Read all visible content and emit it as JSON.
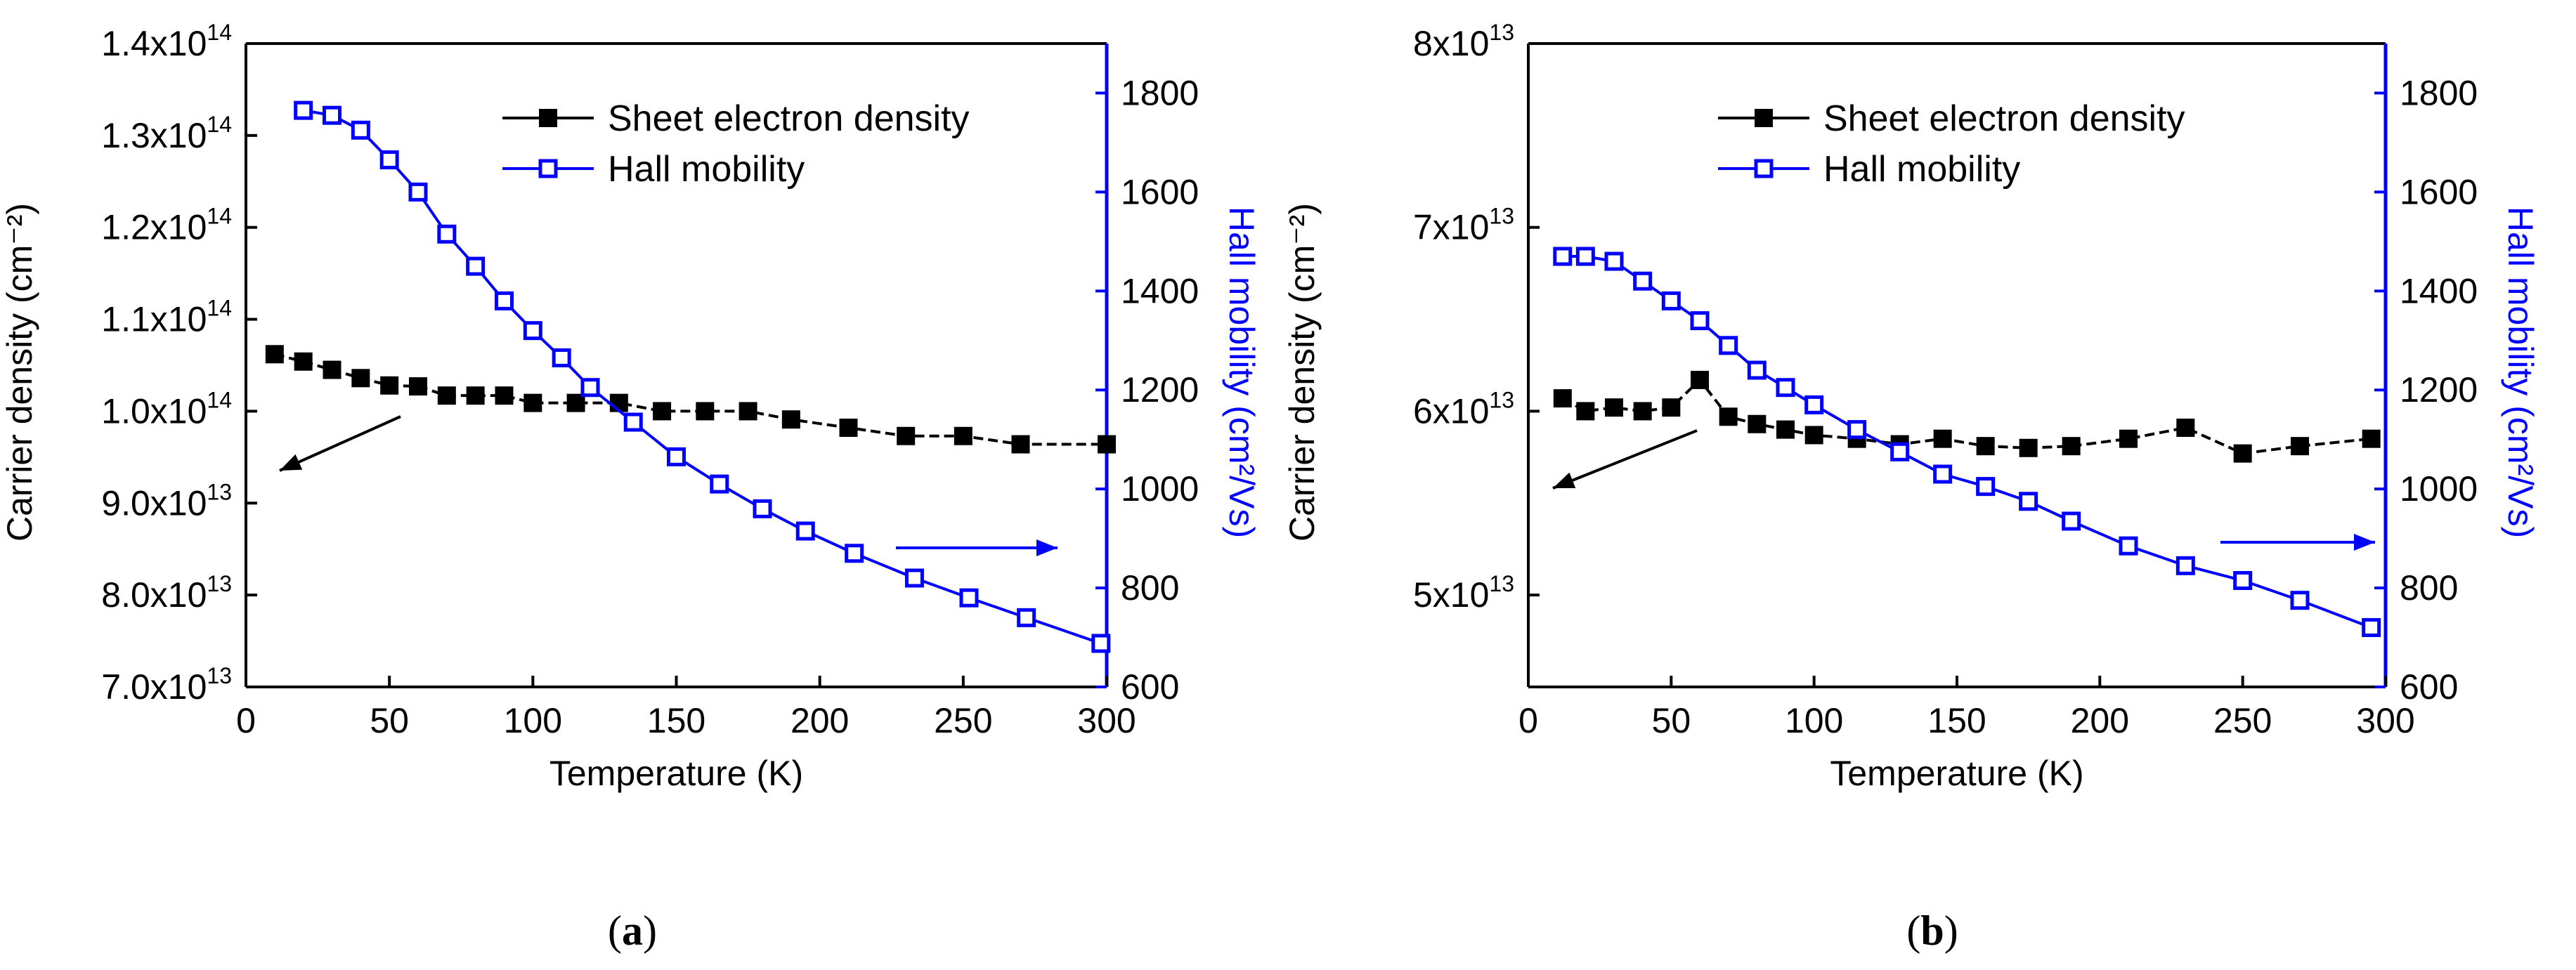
{
  "chart_data": [
    {
      "panel_label": "a",
      "type": "line",
      "xlabel": "Temperature (K)",
      "ylabel_left": "Carrier density (cm⁻²)",
      "ylabel_right": "Hall mobility (cm²/Vs)",
      "xlim": [
        0,
        300
      ],
      "ylim_left": [
        70000000000000.0,
        140000000000000.0
      ],
      "ylim_right": [
        600,
        1900
      ],
      "x_ticks": [
        "0",
        "50",
        "100",
        "150",
        "200",
        "250",
        "300"
      ],
      "y_left_ticks": [
        {
          "mant": "7.0x10",
          "exp": "13",
          "value": 70000000000000.0
        },
        {
          "mant": "8.0x10",
          "exp": "13",
          "value": 80000000000000.0
        },
        {
          "mant": "9.0x10",
          "exp": "13",
          "value": 90000000000000.0
        },
        {
          "mant": "1.0x10",
          "exp": "14",
          "value": 100000000000000.0
        },
        {
          "mant": "1.1x10",
          "exp": "14",
          "value": 110000000000000.0
        },
        {
          "mant": "1.2x10",
          "exp": "14",
          "value": 120000000000000.0
        },
        {
          "mant": "1.3x10",
          "exp": "14",
          "value": 130000000000000.0
        },
        {
          "mant": "1.4x10",
          "exp": "14",
          "value": 140000000000000.0
        }
      ],
      "y_right_ticks": [
        "600",
        "800",
        "1000",
        "1200",
        "1400",
        "1600",
        "1800"
      ],
      "legend_position": "top-right",
      "series": [
        {
          "name": "Sheet electron density",
          "axis": "left",
          "color": "#000000",
          "marker": "filled-square",
          "x": [
            10,
            20,
            30,
            40,
            50,
            60,
            70,
            80,
            90,
            100,
            115,
            130,
            145,
            160,
            175,
            190,
            210,
            230,
            250,
            270,
            300
          ],
          "y": [
            106200000000000.0,
            105400000000000.0,
            104500000000000.0,
            103600000000000.0,
            102800000000000.0,
            102700000000000.0,
            101700000000000.0,
            101700000000000.0,
            101700000000000.0,
            100900000000000.0,
            100900000000000.0,
            100900000000000.0,
            100000000000000.0,
            100000000000000.0,
            100000000000000.0,
            99100000000000.0,
            98200000000000.0,
            97300000000000.0,
            97300000000000.0,
            96400000000000.0,
            96400000000000.0
          ]
        },
        {
          "name": "Hall mobility",
          "axis": "right",
          "color": "#0000ff",
          "marker": "open-square",
          "x": [
            20,
            30,
            40,
            50,
            60,
            70,
            80,
            90,
            100,
            110,
            120,
            135,
            150,
            165,
            180,
            195,
            212,
            233,
            252,
            272,
            298
          ],
          "y": [
            1765,
            1755,
            1725,
            1665,
            1600,
            1515,
            1450,
            1380,
            1320,
            1265,
            1205,
            1135,
            1065,
            1010,
            960,
            915,
            870,
            820,
            780,
            740,
            688
          ]
        }
      ],
      "annotations": [
        "black arrow pointing toward left axis",
        "blue arrow pointing toward right axis"
      ]
    },
    {
      "panel_label": "b",
      "type": "line",
      "xlabel": "Temperature (K)",
      "ylabel_left": "Carrier density (cm⁻²)",
      "ylabel_right": "Hall mobility (cm²/Vs)",
      "xlim": [
        0,
        300
      ],
      "ylim_left": [
        45000000000000.0,
        80000000000000.0
      ],
      "ylim_right": [
        600,
        1900
      ],
      "x_ticks": [
        "0",
        "50",
        "100",
        "150",
        "200",
        "250",
        "300"
      ],
      "y_left_ticks": [
        {
          "mant": "5x10",
          "exp": "13",
          "value": 50000000000000.0
        },
        {
          "mant": "6x10",
          "exp": "13",
          "value": 60000000000000.0
        },
        {
          "mant": "7x10",
          "exp": "13",
          "value": 70000000000000.0
        },
        {
          "mant": "8x10",
          "exp": "13",
          "value": 80000000000000.0
        }
      ],
      "y_right_ticks": [
        "600",
        "800",
        "1000",
        "1200",
        "1400",
        "1600",
        "1800"
      ],
      "legend_position": "top-right",
      "series": [
        {
          "name": "Sheet electron density",
          "axis": "left",
          "color": "#000000",
          "marker": "filled-square",
          "x": [
            12,
            20,
            30,
            40,
            50,
            60,
            70,
            80,
            90,
            100,
            115,
            130,
            145,
            160,
            175,
            190,
            210,
            230,
            250,
            270,
            295
          ],
          "y": [
            60700000000000.0,
            60000000000000.0,
            60200000000000.0,
            60000000000000.0,
            60200000000000.0,
            61700000000000.0,
            59700000000000.0,
            59300000000000.0,
            59000000000000.0,
            58700000000000.0,
            58500000000000.0,
            58200000000000.0,
            58500000000000.0,
            58100000000000.0,
            58000000000000.0,
            58100000000000.0,
            58500000000000.0,
            59100000000000.0,
            57700000000000.0,
            58100000000000.0,
            58500000000000.0
          ]
        },
        {
          "name": "Hall mobility",
          "axis": "right",
          "color": "#0000ff",
          "marker": "open-square",
          "x": [
            12,
            20,
            30,
            40,
            50,
            60,
            70,
            80,
            90,
            100,
            115,
            130,
            145,
            160,
            175,
            190,
            210,
            230,
            250,
            270,
            295
          ],
          "y": [
            1470,
            1470,
            1460,
            1420,
            1380,
            1340,
            1290,
            1240,
            1205,
            1170,
            1120,
            1075,
            1030,
            1005,
            975,
            935,
            885,
            845,
            815,
            775,
            720
          ]
        }
      ],
      "annotations": [
        "black arrow pointing toward left axis",
        "blue arrow pointing toward right axis"
      ]
    }
  ],
  "captions": [
    {
      "open": "(",
      "letter": "a",
      "close": ")"
    },
    {
      "open": "(",
      "letter": "b",
      "close": ")"
    }
  ]
}
